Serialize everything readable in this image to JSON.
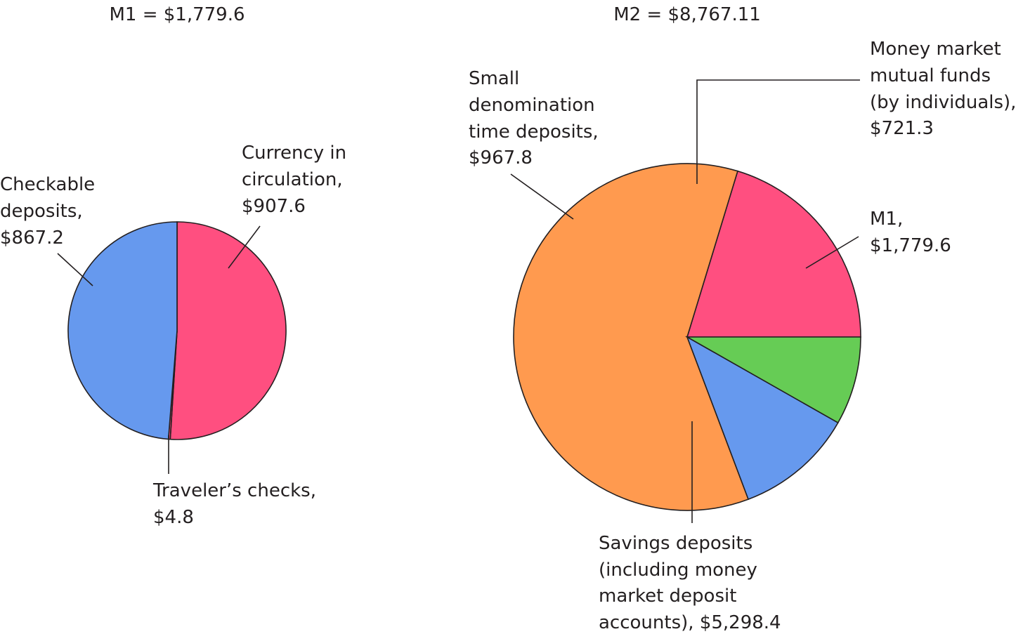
{
  "chart_data": [
    {
      "type": "pie",
      "title": "M1 = $1,779.6",
      "slices": [
        {
          "name": "Currency in circulation",
          "value": 907.6,
          "color": "#ff4f80",
          "label": [
            "Currency in",
            "circulation,",
            "$907.6"
          ]
        },
        {
          "name": "Traveler's checks",
          "value": 4.8,
          "color": "#ff4f80",
          "label": [
            "Traveler’s checks,",
            "$4.8"
          ]
        },
        {
          "name": "Checkable deposits",
          "value": 867.2,
          "color": "#6699ee",
          "label": [
            "Checkable",
            "deposits,",
            "$867.2"
          ]
        }
      ]
    },
    {
      "type": "pie",
      "title": "M2 = $8,767.11",
      "slices": [
        {
          "name": "M1",
          "value": 1779.6,
          "color": "#ff4f80",
          "label": [
            "M1,",
            "$1,779.6"
          ]
        },
        {
          "name": "Savings deposits",
          "value": 5298.4,
          "color": "#ff9a4f",
          "label": [
            "Savings deposits",
            "(including money",
            "market deposit",
            "accounts), $5,298.4"
          ]
        },
        {
          "name": "Small denomination time deposits",
          "value": 967.8,
          "color": "#6699ee",
          "label": [
            "Small",
            "denomination",
            "time deposits,",
            "$967.8"
          ]
        },
        {
          "name": "Money market mutual funds",
          "value": 721.3,
          "color": "#66cc55",
          "label": [
            "Money market",
            "mutual funds",
            "(by individuals),",
            "$721.3"
          ]
        }
      ]
    }
  ]
}
